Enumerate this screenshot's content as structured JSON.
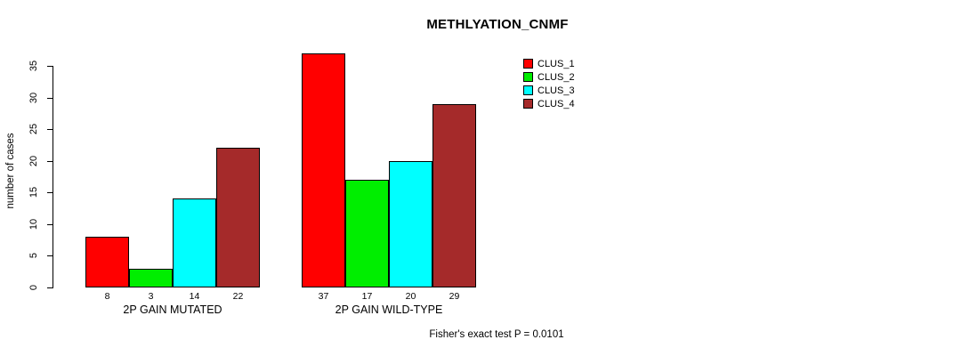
{
  "title": "METHLYATION_CNMF",
  "footer": "Fisher's exact test P = 0.0101",
  "chart_data": {
    "type": "bar",
    "title": "METHLYATION_CNMF",
    "xlabel": "",
    "ylabel": "number of cases",
    "ylim": [
      0,
      35
    ],
    "yticks": [
      0,
      5,
      10,
      15,
      20,
      25,
      30,
      35
    ],
    "grid": false,
    "legend_position": "top-right",
    "categories": [
      "2P GAIN MUTATED",
      "2P GAIN WILD-TYPE"
    ],
    "series": [
      {
        "name": "CLUS_1",
        "color": "#ff0000",
        "values": [
          8,
          37
        ]
      },
      {
        "name": "CLUS_2",
        "color": "#00ee00",
        "values": [
          3,
          17
        ]
      },
      {
        "name": "CLUS_3",
        "color": "#00ffff",
        "values": [
          14,
          20
        ]
      },
      {
        "name": "CLUS_4",
        "color": "#a52a2a",
        "values": [
          22,
          29
        ]
      }
    ],
    "bar_labels": [
      [
        8,
        3,
        14,
        22
      ],
      [
        37,
        17,
        20,
        29
      ]
    ],
    "annotation": "Fisher's exact test P = 0.0101"
  }
}
